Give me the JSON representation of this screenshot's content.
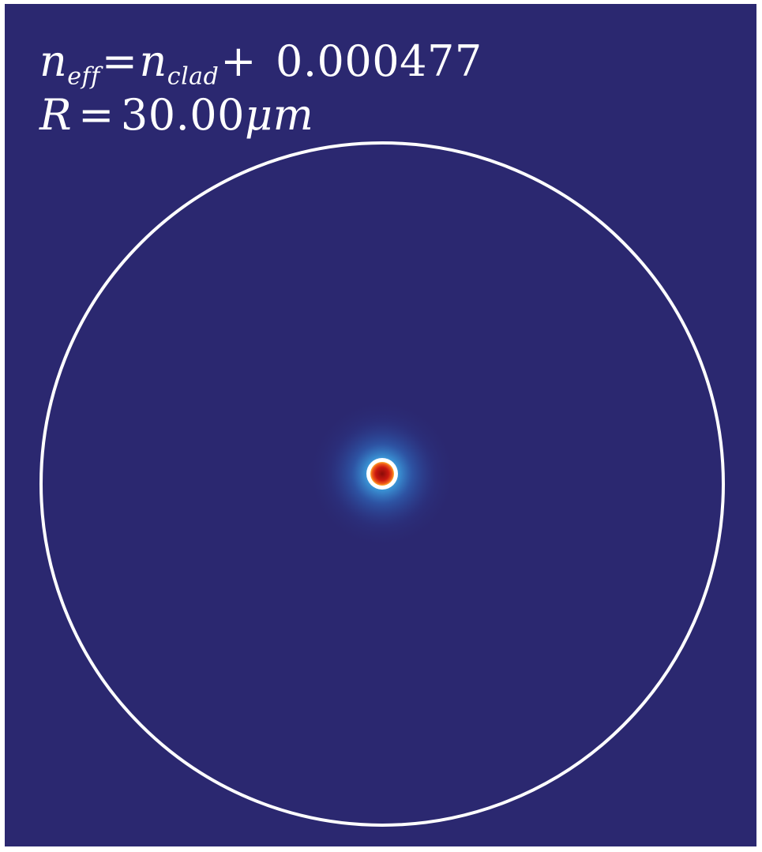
{
  "figure": {
    "neff_symbol": "n",
    "neff_sub": "eff",
    "equals": "=",
    "nclad_symbol": "n",
    "nclad_sub": "clad",
    "plus": "+",
    "delta_value": "0.000477",
    "radius_symbol": "R",
    "radius_equals": "=",
    "radius_value": "30.00",
    "radius_unit": "μm"
  },
  "colors": {
    "background": "#2b2870",
    "boundary": "#ffffff",
    "mode_core": "#c81810",
    "mode_edge": "#ffffff",
    "mode_glow": "#3fa9e6"
  },
  "icons": {
    "boundary": "circle-boundary-icon",
    "mode": "mode-spot-icon"
  }
}
